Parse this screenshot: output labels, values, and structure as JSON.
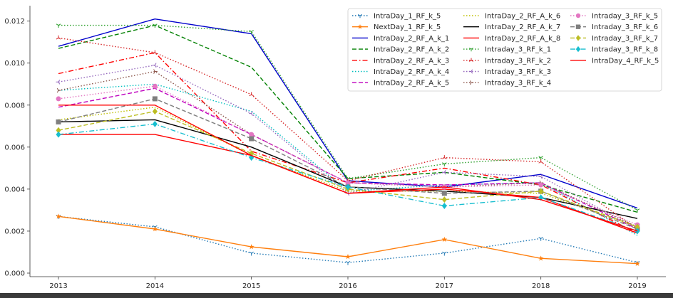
{
  "chart_data": {
    "type": "line",
    "title": "",
    "xlabel": "",
    "ylabel": "",
    "x": [
      2013,
      2014,
      2015,
      2016,
      2017,
      2018,
      2019
    ],
    "x_tick_labels": [
      "2013",
      "2014",
      "2015",
      "2016",
      "2017",
      "2018",
      "2019"
    ],
    "ylim": [
      0.0,
      0.0127
    ],
    "y_ticks": [
      0.0,
      0.002,
      0.004,
      0.006,
      0.008,
      0.01,
      0.012
    ],
    "y_tick_labels": [
      "0.000",
      "0.002",
      "0.004",
      "0.006",
      "0.008",
      "0.010",
      "0.012"
    ],
    "grid": false,
    "legend_position": "top-right",
    "series": [
      {
        "name": "IntraDay_1_RF_k_5",
        "color": "#1f77b4",
        "linestyle": "dotted",
        "marker": "tri_down",
        "values": [
          0.0027,
          0.0022,
          0.00095,
          0.0005,
          0.00095,
          0.00165,
          0.0005
        ]
      },
      {
        "name": "NextDay_1_RF_k_5",
        "color": "#ff7f0e",
        "linestyle": "solid",
        "marker": "star",
        "values": [
          0.0027,
          0.0021,
          0.00125,
          0.00078,
          0.0016,
          0.0007,
          0.00045
        ]
      },
      {
        "name": "IntraDay_2_RF_A_k_1",
        "color": "#0000cc",
        "linestyle": "solid",
        "marker": "none",
        "values": [
          0.0108,
          0.0121,
          0.0114,
          0.0044,
          0.0041,
          0.0047,
          0.0031
        ]
      },
      {
        "name": "IntraDay_2_RF_A_k_2",
        "color": "#008000",
        "linestyle": "dashed",
        "marker": "none",
        "values": [
          0.0107,
          0.0118,
          0.0098,
          0.0045,
          0.0048,
          0.0042,
          0.0029
        ]
      },
      {
        "name": "IntraDay_2_RF_A_k_3",
        "color": "#ff0000",
        "linestyle": "dashdot",
        "marker": "none",
        "values": [
          0.0095,
          0.0105,
          0.0058,
          0.0043,
          0.005,
          0.0042,
          0.0019
        ]
      },
      {
        "name": "IntraDay_2_RF_A_k_4",
        "color": "#00bfbf",
        "linestyle": "dotted",
        "marker": "none",
        "values": [
          0.0087,
          0.009,
          0.0077,
          0.0039,
          0.0042,
          0.0043,
          0.0018
        ]
      },
      {
        "name": "IntraDay_2_RF_A_k_5",
        "color": "#bf00bf",
        "linestyle": "dashed",
        "marker": "none",
        "values": [
          0.0079,
          0.0088,
          0.0066,
          0.0043,
          0.0042,
          0.0043,
          0.0021
        ]
      },
      {
        "name": "IntraDay_2_RF_A_k_6",
        "color": "#bfbf00",
        "linestyle": "dotted",
        "marker": "none",
        "values": [
          0.0073,
          0.0079,
          0.0056,
          0.0039,
          0.0039,
          0.0038,
          0.0022
        ]
      },
      {
        "name": "IntraDay_2_RF_A_k_7",
        "color": "#000000",
        "linestyle": "solid",
        "marker": "none",
        "values": [
          0.0072,
          0.0073,
          0.006,
          0.0041,
          0.0039,
          0.0036,
          0.0026
        ]
      },
      {
        "name": "IntraDay_2_RF_A_k_8",
        "color": "#ff0000",
        "linestyle": "solid",
        "marker": "none",
        "values": [
          0.0066,
          0.0066,
          0.0056,
          0.0038,
          0.004,
          0.0036,
          0.0019
        ]
      },
      {
        "name": "Intraday_3_RF_k_1",
        "color": "#2ca02c",
        "linestyle": "dotted",
        "marker": "tri_down",
        "values": [
          0.0118,
          0.0118,
          0.0115,
          0.0045,
          0.0052,
          0.0055,
          0.003
        ]
      },
      {
        "name": "Intraday_3_RF_k_2",
        "color": "#d62728",
        "linestyle": "dotted",
        "marker": "tri_up",
        "values": [
          0.0112,
          0.0105,
          0.0085,
          0.0044,
          0.0055,
          0.0053,
          0.0021
        ]
      },
      {
        "name": "Intraday_3_RF_k_3",
        "color": "#9467bd",
        "linestyle": "dotted",
        "marker": "tri_left",
        "values": [
          0.0091,
          0.0099,
          0.0076,
          0.0038,
          0.0048,
          0.0046,
          0.0021
        ]
      },
      {
        "name": "Intraday_3_RF_k_4",
        "color": "#8c564b",
        "linestyle": "dotted",
        "marker": "tri_right",
        "values": [
          0.0087,
          0.0096,
          0.0066,
          0.0043,
          0.0041,
          0.0043,
          0.0022
        ]
      },
      {
        "name": "Intraday_3_RF_k_5",
        "color": "#e377c2",
        "linestyle": "dotted",
        "marker": "circle",
        "values": [
          0.0083,
          0.0089,
          0.0066,
          0.0043,
          0.0041,
          0.0042,
          0.0023
        ]
      },
      {
        "name": "Intraday_3_RF_k_6",
        "color": "#7f7f7f",
        "linestyle": "dashed",
        "marker": "square",
        "values": [
          0.0072,
          0.0083,
          0.0064,
          0.0041,
          0.0038,
          0.0039,
          0.0021
        ]
      },
      {
        "name": "Intraday_3_RF_k_7",
        "color": "#bcbd22",
        "linestyle": "dashed",
        "marker": "diamond",
        "values": [
          0.0068,
          0.0077,
          0.0057,
          0.004,
          0.0035,
          0.0039,
          0.0022
        ]
      },
      {
        "name": "Intraday_3_RF_k_8",
        "color": "#17becf",
        "linestyle": "dashdot",
        "marker": "diamond",
        "values": [
          0.0066,
          0.0071,
          0.0055,
          0.0041,
          0.0032,
          0.0036,
          0.002
        ]
      },
      {
        "name": "IntraDay_4_RF_k_5",
        "color": "#ff0000",
        "linestyle": "solid",
        "marker": "none",
        "values": [
          0.008,
          0.008,
          0.0056,
          0.0038,
          0.0041,
          0.0035,
          0.002
        ]
      }
    ]
  }
}
